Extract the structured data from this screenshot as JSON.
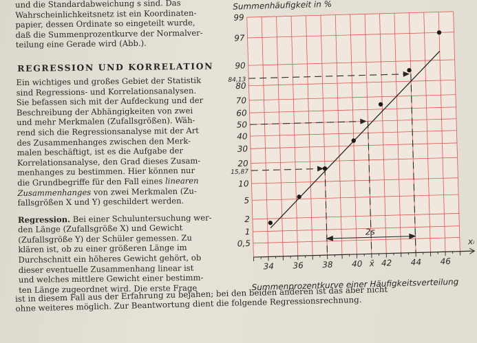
{
  "left_column": {
    "intro_lines": [
      "und die Standardabweichung s sind. Das",
      "Wahrscheinlichkeitsnetz ist ein Koordinaten-",
      "papier, dessen Ordinate so eingeteilt wurde,",
      "daß die Summenprozentkurve der Normalver-",
      "teilung eine Gerade wird (Abb.)."
    ],
    "heading": "REGRESSION UND KORRELATION",
    "para1_lines": [
      "Ein wichtiges und großes Gebiet der Statistik",
      "sind Regressions- und Korrelationsanalysen.",
      "Sie befassen sich mit der Aufdeckung und der",
      "Beschreibung der Abhängigkeiten von zwei",
      "und mehr Merkmalen (Zufallsgrößen). Wäh-",
      "rend sich die Regressionsanalyse mit der Art",
      "des Zusammenhanges zwischen den Merk-",
      "malen beschäftigt, ist es die Aufgabe der",
      "Korrelationsanalyse, den Grad dieses Zusam-",
      "menhanges zu bestimmen. Hier können nur",
      "die Grundbegriffe für den Fall eines",
      "fallsgrößen X und Y) geschildert werden."
    ],
    "para1_italic_1": "linearen",
    "para1_italic_2": "Zusammenhanges",
    "para1_line12_rest": "von zwei Merkmalen (Zu-",
    "para2_lead": "Regression.",
    "para2_line1_rest": "Bei einer Schuluntersuchung wer-",
    "para2_lines": [
      "den Länge (Zufallsgröße X) und Gewicht",
      "(Zufallsgröße Y) der Schüler gemessen. Zu",
      "klären ist, ob zu einer größeren Länge im",
      "Durchschnitt ein höheres Gewicht gehört, ob",
      "dieser eventuelle Zusammenhang linear ist",
      "und welches mittlere Gewicht einer bestimm-",
      "ten Länge zugeordnet wird. Die erste Frage"
    ]
  },
  "bottom_lines": [
    "ist in diesem Fall aus der Erfahrung zu bejahen; bei den beiden anderen ist das aber nicht",
    "ohne weiteres möglich. Zur Beantwortung dient die folgende Regressionsrechnung."
  ],
  "figure": {
    "ylabel": "Summenhäufigkeit in %",
    "caption": "Summenprozentkurve einer Häufigkeitsverteilung",
    "x_axis_label": "xᵢ",
    "two_s_label": "2s",
    "x_mean_label": "x̄",
    "y_ticks": [
      {
        "label": "99",
        "pct": 99
      },
      {
        "label": "97",
        "pct": 97
      },
      {
        "label": "90",
        "pct": 90
      },
      {
        "label": "84,13",
        "pct": 84.13
      },
      {
        "label": "80",
        "pct": 80
      },
      {
        "label": "70",
        "pct": 70
      },
      {
        "label": "60",
        "pct": 60
      },
      {
        "label": "50",
        "pct": 50
      },
      {
        "label": "40",
        "pct": 40
      },
      {
        "label": "30",
        "pct": 30
      },
      {
        "label": "20",
        "pct": 20
      },
      {
        "label": "15,87",
        "pct": 15.87
      },
      {
        "label": "10",
        "pct": 10
      },
      {
        "label": "5",
        "pct": 5
      },
      {
        "label": "2",
        "pct": 2
      },
      {
        "label": "1",
        "pct": 1
      },
      {
        "label": "0,5",
        "pct": 0.5
      }
    ],
    "x_ticks": [
      "34",
      "36",
      "38",
      "40",
      "42",
      "44",
      "46"
    ],
    "grid_color": "#e0524f"
  },
  "chart_data": {
    "type": "scatter",
    "title": "",
    "subtitle": "Summenprozentkurve einer Häufigkeitsverteilung",
    "xlabel": "xᵢ",
    "ylabel": "Summenhäufigkeit in %",
    "y_scale": "probability (normal)",
    "xlim": [
      33,
      47
    ],
    "ylim": [
      0.2,
      99
    ],
    "grid": true,
    "x": [
      34.2,
      36.2,
      38.0,
      40.0,
      41.9,
      43.9,
      46.0
    ],
    "y": [
      1.6,
      5.5,
      15.87,
      34,
      64,
      86,
      97
    ],
    "regression_line": {
      "x": [
        34.2,
        46.0
      ],
      "y": [
        1.2,
        93
      ]
    },
    "reference_lines": [
      {
        "y": 15.87,
        "x": 38.0
      },
      {
        "y": 50,
        "x": 41.0
      },
      {
        "y": 84.13,
        "x": 44.0
      }
    ],
    "annotations": [
      "84,13",
      "15,87",
      "2s",
      "x̄"
    ]
  }
}
